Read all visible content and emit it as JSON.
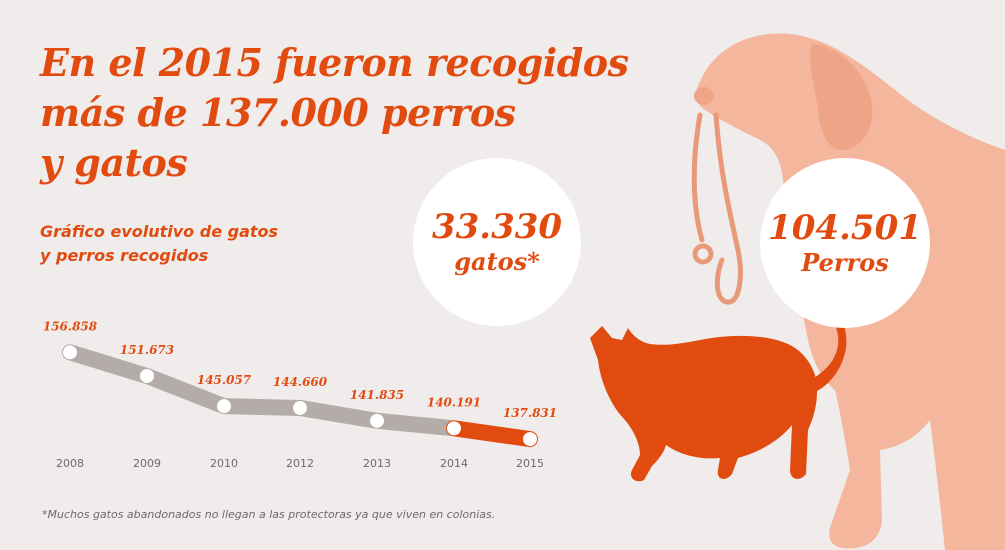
{
  "headline": {
    "line1": "En el 2015 fueron recogidos",
    "line2": "más de 137.000 perros",
    "line3": "y gatos"
  },
  "subtitle": {
    "line1": "Gráfico evolutivo de gatos",
    "line2": "y perros recogidos"
  },
  "stats": {
    "gatos": {
      "value": "33.330",
      "label": "gatos*"
    },
    "perros": {
      "value": "104.501",
      "label": "Perros"
    }
  },
  "footnote": "*Muchos gatos abandonados no llegan a las protectoras ya que viven en colonias.",
  "colors": {
    "accent": "#e24b10",
    "line_gray": "#b3aca8",
    "dog": "#f4b79d",
    "cat": "#e24b10",
    "background": "#efeceb"
  },
  "illustrations": [
    "dog-with-leash",
    "cat"
  ],
  "chart_data": {
    "type": "line",
    "categories": [
      "2008",
      "2009",
      "2010",
      "2012",
      "2013",
      "2014",
      "2015"
    ],
    "value_labels": [
      "156.858",
      "151.673",
      "145.057",
      "144.660",
      "141.835",
      "140.191",
      "137.831"
    ],
    "values": [
      156858,
      151673,
      145057,
      144660,
      141835,
      140191,
      137831
    ],
    "highlight_last_segment": true,
    "title": "Gráfico evolutivo de gatos y perros recogidos",
    "xlabel": "",
    "ylabel": "",
    "grid": false
  }
}
